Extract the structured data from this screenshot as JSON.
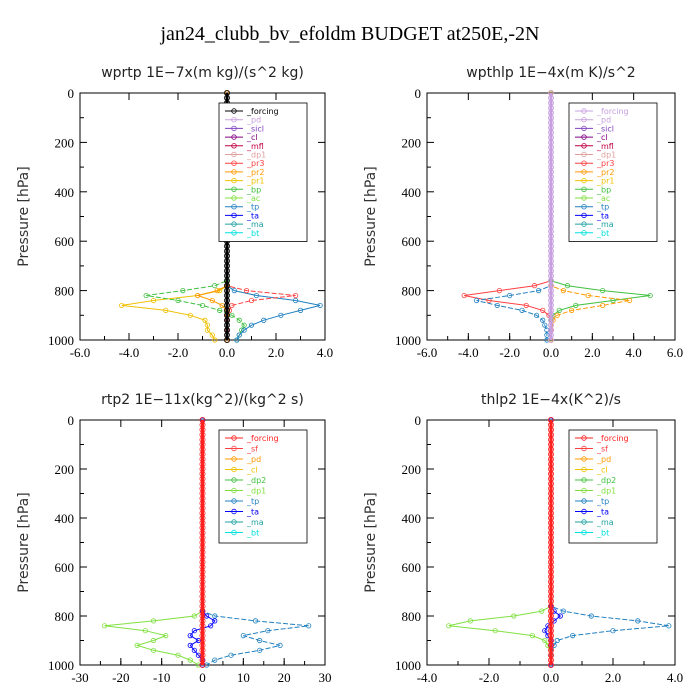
{
  "figure": {
    "title": "jan24_clubb_bv_efoldm  BUDGET at250E,-2N"
  },
  "chart_data": [
    {
      "type": "line",
      "title": "wprtp   1E−7x(m kg)/(s^2 kg)",
      "ylabel": "Pressure  [hPa]",
      "xlim": [
        -6,
        4
      ],
      "ylim": [
        1000,
        0
      ],
      "y_inverted": true,
      "xticks": [
        -6,
        -4,
        -2,
        0,
        2,
        4
      ],
      "xtick_labels": [
        "-6.0",
        "-4.0",
        "-2.0",
        "0.0",
        "2.0",
        "4.0"
      ],
      "yticks": [
        0,
        200,
        400,
        600,
        800,
        1000
      ],
      "legend_position": "top-right",
      "legend": [
        "_forcing",
        "_pd",
        "_sicl",
        "_cl",
        "_mfl",
        "_dp1",
        "_pr3",
        "_pr2",
        "_pr1",
        "_bp",
        "_ac",
        "_tp",
        "_ta",
        "_ma",
        "_bt"
      ],
      "legend_colors": [
        "#000000",
        "#c8a0e0",
        "#8040c0",
        "#800080",
        "#c00040",
        "#e0a0a0",
        "#ff4040",
        "#ff9900",
        "#f0c000",
        "#40c040",
        "#80e040",
        "#2080c0",
        "#0000ff",
        "#20a0a0",
        "#00e0e0"
      ],
      "series": [
        {
          "name": "_pr1",
          "color": "#f0c000",
          "pressure": [
            0,
            780,
            800,
            820,
            840,
            860,
            880,
            900,
            920,
            940,
            960,
            980,
            1000
          ],
          "values": [
            0,
            0,
            -0.3,
            -1.2,
            -3.0,
            -4.3,
            -2.5,
            -1.5,
            -0.9,
            -0.8,
            -0.8,
            -0.6,
            -0.5
          ]
        },
        {
          "name": "_bp",
          "color": "#40c040",
          "pressure": [
            0,
            760,
            780,
            800,
            820,
            840,
            860,
            880,
            900,
            920,
            940,
            960,
            980,
            1000
          ],
          "values": [
            0,
            0,
            -0.5,
            -1.8,
            -3.3,
            -2.0,
            -1.0,
            -0.3,
            0.2,
            0.5,
            0.7,
            0.6,
            0.5,
            0.4
          ]
        },
        {
          "name": "_tp",
          "color": "#2080c0",
          "pressure": [
            0,
            780,
            800,
            820,
            840,
            860,
            880,
            900,
            920,
            940,
            960,
            980,
            1000
          ],
          "values": [
            0,
            0,
            0.3,
            1.2,
            2.8,
            3.8,
            3.0,
            2.2,
            1.5,
            1.0,
            0.7,
            0.5,
            0.4
          ]
        },
        {
          "name": "_pr3",
          "color": "#ff4040",
          "pressure": [
            0,
            780,
            800,
            820,
            840,
            860,
            880,
            900,
            920,
            960,
            1000
          ],
          "values": [
            0,
            0,
            0.8,
            2.8,
            1.0,
            0.2,
            0.1,
            0,
            0,
            0,
            0
          ]
        },
        {
          "name": "_pr2",
          "color": "#ff9900",
          "pressure": [
            0,
            780,
            800,
            820,
            840,
            860,
            880,
            900,
            1000
          ],
          "values": [
            0,
            0,
            -0.4,
            -1.2,
            -0.6,
            -0.2,
            0,
            0,
            0
          ]
        },
        {
          "name": "_forcing",
          "color": "#000000",
          "pressure": [
            0,
            1000
          ],
          "values": [
            0,
            0
          ]
        }
      ]
    },
    {
      "type": "line",
      "title": "wpthlp   1E−4x(m K)/s^2",
      "ylabel": "Pressure  [hPa]",
      "xlim": [
        -6,
        6
      ],
      "ylim": [
        1000,
        0
      ],
      "y_inverted": true,
      "xticks": [
        -6,
        -4,
        -2,
        0,
        2,
        4,
        6
      ],
      "xtick_labels": [
        "-6.0",
        "-4.0",
        "-2.0",
        "0.0",
        "2.0",
        "4.0",
        "6.0"
      ],
      "yticks": [
        0,
        200,
        400,
        600,
        800,
        1000
      ],
      "legend_position": "top-right",
      "legend": [
        "_forcing",
        "_pd",
        "_sicl",
        "_cl",
        "_mfl",
        "_dp1",
        "_pr3",
        "_pr2",
        "_pr1",
        "_bp",
        "_ac",
        "_tp",
        "_ta",
        "_ma",
        "_bt"
      ],
      "legend_colors": [
        "#c8a0e0",
        "#c8a0e0",
        "#8040c0",
        "#800080",
        "#c00040",
        "#e0a0a0",
        "#ff4040",
        "#ff9900",
        "#f0c000",
        "#40c040",
        "#80e040",
        "#2080c0",
        "#0000ff",
        "#20a0a0",
        "#00e0e0"
      ],
      "series": [
        {
          "name": "_pr3",
          "color": "#ff4040",
          "pressure": [
            0,
            760,
            780,
            800,
            820,
            840,
            860,
            880,
            900,
            920,
            960,
            1000
          ],
          "values": [
            0,
            0,
            -0.8,
            -2.5,
            -4.2,
            -3.0,
            -1.2,
            -0.4,
            -0.1,
            0,
            0,
            0
          ]
        },
        {
          "name": "_tp",
          "color": "#2080c0",
          "pressure": [
            0,
            780,
            800,
            820,
            840,
            860,
            880,
            900,
            920,
            940,
            960,
            980,
            1000
          ],
          "values": [
            0,
            0,
            -0.6,
            -2.0,
            -3.6,
            -2.6,
            -1.4,
            -0.7,
            -0.4,
            -0.3,
            -0.2,
            -0.2,
            -0.2
          ]
        },
        {
          "name": "_bp",
          "color": "#40c040",
          "pressure": [
            0,
            760,
            780,
            800,
            820,
            840,
            860,
            880,
            900,
            920,
            1000
          ],
          "values": [
            0,
            0,
            0.8,
            2.5,
            4.8,
            3.0,
            1.2,
            0.4,
            0.1,
            0,
            0
          ]
        },
        {
          "name": "_pr2",
          "color": "#ff9900",
          "pressure": [
            0,
            780,
            800,
            820,
            840,
            860,
            880,
            900,
            920,
            1000
          ],
          "values": [
            0,
            0,
            0.6,
            1.8,
            3.8,
            2.5,
            1.0,
            0.3,
            0.1,
            0
          ]
        },
        {
          "name": "_forcing",
          "color": "#c8a0e0",
          "pressure": [
            0,
            1000
          ],
          "values": [
            0,
            0
          ]
        }
      ]
    },
    {
      "type": "line",
      "title": "rtp2   1E−11x(kg^2)/(kg^2 s)",
      "ylabel": "Pressure  [hPa]",
      "xlim": [
        -30,
        30
      ],
      "ylim": [
        1000,
        0
      ],
      "y_inverted": true,
      "xticks": [
        -30,
        -20,
        -10,
        0,
        10,
        20,
        30
      ],
      "xtick_labels": [
        "-30",
        "-20",
        "-10",
        "0",
        "10",
        "20",
        "30"
      ],
      "yticks": [
        0,
        200,
        400,
        600,
        800,
        1000
      ],
      "legend_position": "top-right",
      "legend": [
        "_forcing",
        "_sf",
        "_pd",
        "_cl",
        "_dp2",
        "_dp1",
        "_tp",
        "_ta",
        "_ma",
        "_bt"
      ],
      "legend_colors": [
        "#ff2020",
        "#ff4040",
        "#ff9900",
        "#f0c000",
        "#40c040",
        "#80e040",
        "#2080c0",
        "#0000ff",
        "#20a0a0",
        "#00e0e0"
      ],
      "series": [
        {
          "name": "_dp1",
          "color": "#80e040",
          "pressure": [
            0,
            780,
            800,
            820,
            840,
            860,
            880,
            900,
            920,
            940,
            960,
            980,
            1000
          ],
          "values": [
            0,
            0,
            -2,
            -12,
            -24,
            -14,
            -9,
            -12,
            -16,
            -12,
            -6,
            -3,
            -1
          ]
        },
        {
          "name": "_tp",
          "color": "#2080c0",
          "pressure": [
            0,
            780,
            800,
            820,
            840,
            860,
            880,
            900,
            920,
            940,
            960,
            980,
            1000
          ],
          "values": [
            0,
            0,
            3,
            13,
            26,
            16,
            10,
            14,
            19,
            14,
            7,
            3,
            1
          ]
        },
        {
          "name": "_ta",
          "color": "#0000ff",
          "pressure": [
            0,
            780,
            800,
            820,
            840,
            860,
            880,
            900,
            920,
            940,
            960,
            980,
            1000
          ],
          "values": [
            0,
            0,
            1,
            3,
            2,
            -2,
            -3,
            -1,
            -3,
            -2,
            -1,
            0,
            0
          ]
        },
        {
          "name": "_forcing",
          "color": "#ff2020",
          "pressure": [
            0,
            1000
          ],
          "values": [
            0,
            0
          ]
        }
      ]
    },
    {
      "type": "line",
      "title": "thlp2   1E−4x(K^2)/s",
      "ylabel": "Pressure  [hPa]",
      "xlim": [
        -4,
        4
      ],
      "ylim": [
        1000,
        0
      ],
      "y_inverted": true,
      "xticks": [
        -4,
        -2,
        0,
        2,
        4
      ],
      "xtick_labels": [
        "-4.0",
        "-2.0",
        "0.0",
        "2.0",
        "4.0"
      ],
      "yticks": [
        0,
        200,
        400,
        600,
        800,
        1000
      ],
      "legend_position": "top-right",
      "legend": [
        "_forcing",
        "_sf",
        "_pd",
        "_cl",
        "_dp2",
        "_dp1",
        "_tp",
        "_ta",
        "_ma",
        "_bt"
      ],
      "legend_colors": [
        "#ff2020",
        "#ff4040",
        "#ff9900",
        "#f0c000",
        "#40c040",
        "#80e040",
        "#2080c0",
        "#0000ff",
        "#20a0a0",
        "#00e0e0"
      ],
      "series": [
        {
          "name": "_dp1",
          "color": "#80e040",
          "pressure": [
            0,
            760,
            780,
            800,
            820,
            840,
            860,
            880,
            900,
            920,
            960,
            1000
          ],
          "values": [
            0,
            0,
            -0.3,
            -1.2,
            -2.6,
            -3.3,
            -1.8,
            -0.6,
            -0.2,
            -0.1,
            0,
            0
          ]
        },
        {
          "name": "_tp",
          "color": "#2080c0",
          "pressure": [
            0,
            760,
            780,
            800,
            820,
            840,
            860,
            880,
            900,
            920,
            960,
            1000
          ],
          "values": [
            0,
            0,
            0.4,
            1.3,
            2.8,
            3.8,
            2.0,
            0.7,
            0.2,
            0.1,
            0,
            0
          ]
        },
        {
          "name": "_ta",
          "color": "#0000ff",
          "pressure": [
            0,
            760,
            780,
            800,
            820,
            840,
            860,
            880,
            900,
            920,
            1000
          ],
          "values": [
            0,
            0,
            0.1,
            0.3,
            0.1,
            -0.1,
            -0.2,
            -0.1,
            0,
            0,
            0
          ]
        },
        {
          "name": "_forcing",
          "color": "#ff2020",
          "pressure": [
            0,
            1000
          ],
          "values": [
            0,
            0
          ]
        }
      ]
    }
  ]
}
